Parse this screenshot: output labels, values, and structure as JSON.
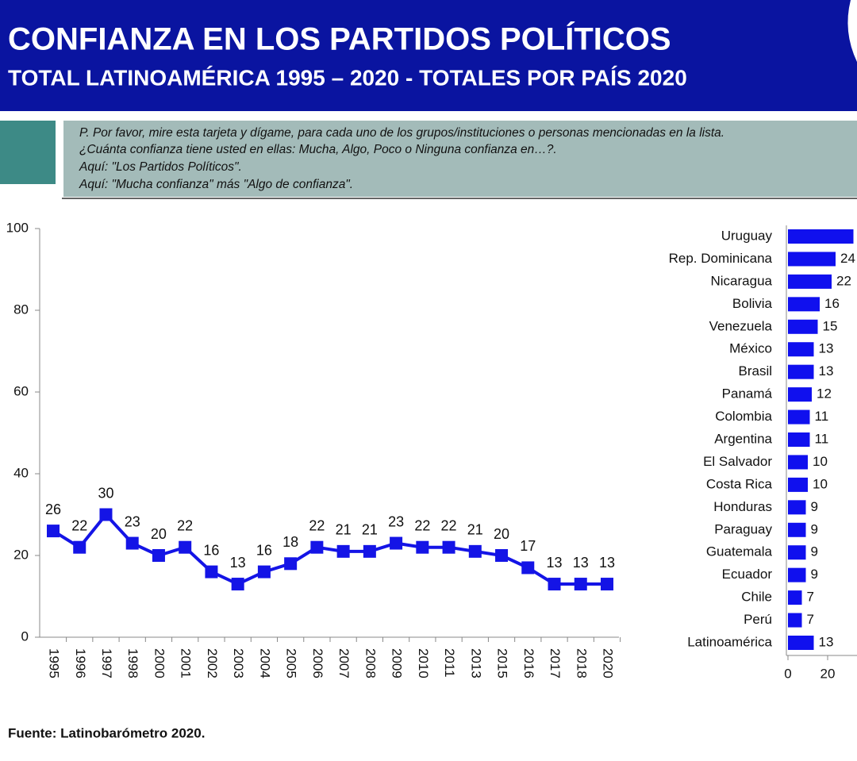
{
  "header": {
    "title": "CONFIANZA EN LOS PARTIDOS POLÍTICOS",
    "subtitle": "TOTAL LATINOAMÉRICA 1995 – 2020 - TOTALES POR PAÍS 2020"
  },
  "question": [
    "P. Por favor, mire esta tarjeta y dígame, para cada uno de los grupos/instituciones o personas mencionadas en la lista.",
    "¿Cuánta confianza tiene usted en ellas: Mucha, Algo, Poco o Ninguna confianza en…?.",
    "Aquí: \"Los Partidos Políticos\".",
    "Aquí: \"Mucha confianza\" más \"Algo de confianza\"."
  ],
  "source": "Fuente: Latinobarómetro 2020.",
  "chart_data": [
    {
      "type": "line",
      "color": "#1414e6",
      "categories": [
        "1995",
        "1996",
        "1997",
        "1998",
        "2000",
        "2001",
        "2002",
        "2003",
        "2004",
        "2005",
        "2006",
        "2007",
        "2008",
        "2009",
        "2010",
        "2011",
        "2013",
        "2015",
        "2016",
        "2017",
        "2018",
        "2020"
      ],
      "values": [
        26,
        22,
        30,
        23,
        20,
        22,
        16,
        13,
        16,
        18,
        22,
        21,
        21,
        23,
        22,
        22,
        21,
        20,
        17,
        13,
        13,
        13
      ],
      "ylim": [
        0,
        100
      ],
      "yticks": [
        0,
        20,
        40,
        60,
        80,
        100
      ]
    },
    {
      "type": "bar",
      "orientation": "horizontal",
      "color": "#1010ee",
      "categories": [
        "Uruguay",
        "Rep. Dominicana",
        "Nicaragua",
        "Bolivia",
        "Venezuela",
        "México",
        "Brasil",
        "Panamá",
        "Colombia",
        "Argentina",
        "El Salvador",
        "Costa Rica",
        "Honduras",
        "Paraguay",
        "Guatemala",
        "Ecuador",
        "Chile",
        "Perú",
        "Latinoamérica"
      ],
      "values": [
        33,
        24,
        22,
        16,
        15,
        13,
        13,
        12,
        11,
        11,
        10,
        10,
        9,
        9,
        9,
        9,
        7,
        7,
        13
      ],
      "xlim": [
        0,
        40
      ],
      "xticks": [
        0,
        20
      ]
    }
  ]
}
